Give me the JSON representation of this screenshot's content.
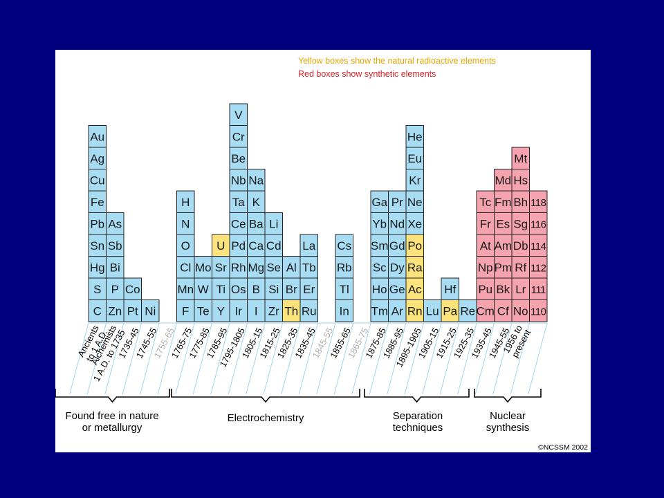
{
  "legend": {
    "yellow": "Yellow boxes show the natural radioactive elements",
    "red": "Red boxes show synthetic elements"
  },
  "colors": {
    "blue": "#a7dcf3",
    "yellow": "#fbe27a",
    "red": "#f6a3b0",
    "background": "#00007f"
  },
  "columns": [
    {
      "label": "Ancients\nto 1 A.D.",
      "elements": [
        "C",
        "S",
        "Hg",
        "Sn",
        "Pb",
        "Fe",
        "Cu",
        "Ag",
        "Au"
      ],
      "types": {}
    },
    {
      "label": "Alchemists\n1 A.D. to 1735",
      "elements": [
        "Zn",
        "P",
        "Bi",
        "Sb",
        "As"
      ],
      "types": {}
    },
    {
      "label": "1735-45",
      "elements": [
        "Pt",
        "Co"
      ],
      "types": {}
    },
    {
      "label": "1745-55",
      "elements": [
        "Ni"
      ],
      "types": {}
    },
    {
      "label": "1755-65",
      "faded": true,
      "elements": [],
      "types": {}
    },
    {
      "label": "1765-75",
      "elements": [
        "F",
        "Mn",
        "Cl",
        "O",
        "N",
        "H"
      ],
      "types": {}
    },
    {
      "label": "1775-85",
      "elements": [
        "Te",
        "W",
        "Mo"
      ],
      "types": {}
    },
    {
      "label": "1785-95",
      "elements": [
        "Y",
        "Ti",
        "Sr",
        "U"
      ],
      "types": {
        "U": "yellow"
      }
    },
    {
      "label": "1795-1805",
      "elements": [
        "Ir",
        "Os",
        "Rh",
        "Pd",
        "Ce",
        "Ta",
        "Nb",
        "Be",
        "Cr",
        "V"
      ],
      "types": {}
    },
    {
      "label": "1805-15",
      "elements": [
        "I",
        "B",
        "Mg",
        "Ca",
        "Ba",
        "K",
        "Na"
      ],
      "types": {}
    },
    {
      "label": "1815-25",
      "elements": [
        "Zr",
        "Si",
        "Se",
        "Cd",
        "Li"
      ],
      "types": {}
    },
    {
      "label": "1825-35",
      "elements": [
        "Th",
        "Br",
        "Al"
      ],
      "types": {
        "Th": "yellow"
      }
    },
    {
      "label": "1835-45",
      "elements": [
        "Ru",
        "Er",
        "Tb",
        "La"
      ],
      "types": {}
    },
    {
      "label": "1845-55",
      "faded": true,
      "elements": [],
      "types": {}
    },
    {
      "label": "1855-65",
      "elements": [
        "In",
        "Tl",
        "Rb",
        "Cs"
      ],
      "types": {}
    },
    {
      "label": "1865-75",
      "faded": true,
      "elements": [],
      "types": {}
    },
    {
      "label": "1875-85",
      "elements": [
        "Tm",
        "Ho",
        "Sc",
        "Sm",
        "Yb",
        "Ga"
      ],
      "types": {}
    },
    {
      "label": "1885-95",
      "elements": [
        "Ar",
        "Ge",
        "Dy",
        "Gd",
        "Nd",
        "Pr"
      ],
      "types": {}
    },
    {
      "label": "1895-1905",
      "elements": [
        "Rn",
        "Ac",
        "Ra",
        "Po",
        "Xe",
        "Ne",
        "Kr",
        "Eu",
        "He"
      ],
      "types": {
        "Rn": "yellow",
        "Ac": "yellow",
        "Ra": "yellow",
        "Po": "yellow"
      }
    },
    {
      "label": "1905-15",
      "elements": [
        "Lu"
      ],
      "types": {}
    },
    {
      "label": "1915-25",
      "elements": [
        "Pa",
        "Hf"
      ],
      "types": {
        "Pa": "yellow"
      }
    },
    {
      "label": "1925-35",
      "elements": [
        "Re"
      ],
      "types": {}
    },
    {
      "label": "1935-45",
      "elements": [
        "Cm",
        "Pu",
        "Np",
        "At",
        "Fr",
        "Tc"
      ],
      "types": {
        "Cm": "red",
        "Pu": "red",
        "Np": "red",
        "At": "red",
        "Fr": "red",
        "Tc": "red"
      }
    },
    {
      "label": "1945-55",
      "elements": [
        "Cf",
        "Bk",
        "Pm",
        "Am",
        "Es",
        "Fm",
        "Md"
      ],
      "types": {
        "Cf": "red",
        "Bk": "red",
        "Pm": "red",
        "Am": "red",
        "Es": "red",
        "Fm": "red",
        "Md": "red"
      }
    },
    {
      "label": "1956 to\npresent",
      "elements": [
        "No",
        "Lr",
        "Rf",
        "Db",
        "Sg",
        "Bh",
        "Hs",
        "Mt"
      ],
      "types": {
        "No": "red",
        "Lr": "red",
        "Rf": "red",
        "Db": "red",
        "Sg": "red",
        "Bh": "red",
        "Hs": "red",
        "Mt": "red"
      }
    },
    {
      "label": "",
      "elements": [
        "110",
        "111",
        "112",
        "114",
        "116",
        "118"
      ],
      "types": {
        "110": "red",
        "111": "red",
        "112": "red",
        "114": "red",
        "116": "red",
        "118": "red"
      }
    }
  ],
  "groups": [
    {
      "label": "Found free in nature\nor metallurgy"
    },
    {
      "label": "Electrochemistry"
    },
    {
      "label": "Separation\ntechniques"
    },
    {
      "label": "Nuclear\nsynthesis"
    }
  ],
  "copyright": "©NCSSM 2002"
}
